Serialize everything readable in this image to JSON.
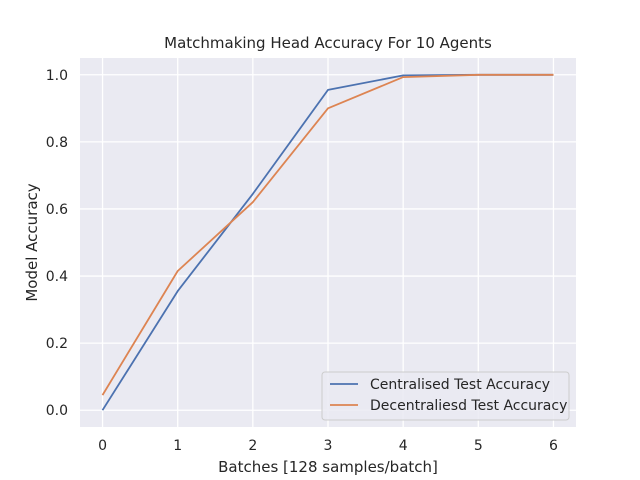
{
  "chart_data": {
    "type": "line",
    "title": "Matchmaking Head Accuracy For 10 Agents",
    "xlabel": "Batches [128 samples/batch]",
    "ylabel": "Model Accuracy",
    "x": [
      0,
      1,
      2,
      3,
      4,
      5,
      6
    ],
    "xlim": [
      -0.3,
      6.3
    ],
    "ylim": [
      -0.05,
      1.05
    ],
    "xticks": [
      0,
      1,
      2,
      3,
      4,
      5,
      6
    ],
    "yticks": [
      "0.0",
      "0.2",
      "0.4",
      "0.6",
      "0.8",
      "1.0"
    ],
    "grid": true,
    "legend_position": "lower-right",
    "series": [
      {
        "name": "Centralised Test Accuracy",
        "color": "#4c72b0",
        "values": [
          0.0,
          0.355,
          0.645,
          0.955,
          0.998,
          1.0,
          1.0
        ]
      },
      {
        "name": "Decentraliesd Test Accuracy",
        "color": "#dd8452",
        "values": [
          0.045,
          0.415,
          0.62,
          0.9,
          0.993,
          1.0,
          1.0
        ]
      }
    ],
    "background_color": "#eaeaf2",
    "grid_color": "#ffffff"
  }
}
